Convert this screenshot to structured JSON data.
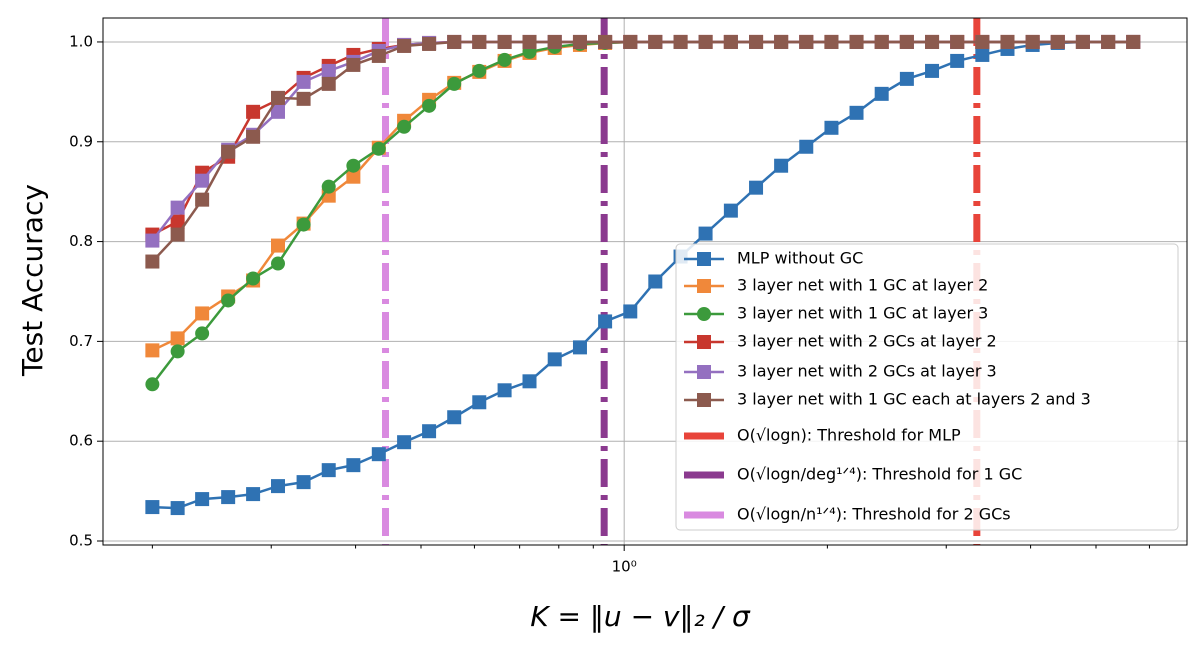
{
  "chart_data": {
    "type": "line",
    "ylabel": "Test Accuracy",
    "xlabel": "K = ‖u − v‖₂ / σ",
    "log_x": true,
    "grid": true,
    "legend_position": "lower right",
    "xlim": [
      0.169,
      6.82
    ],
    "ylim": [
      0.496,
      1.024
    ],
    "xticks": [
      {
        "value": 1,
        "label": "10⁰"
      }
    ],
    "xminorticks": [
      0.2,
      0.3,
      0.4,
      0.5,
      0.6,
      0.7,
      0.8,
      0.9,
      2,
      3,
      4,
      5,
      6
    ],
    "yticks": [
      0.5,
      0.6,
      0.7,
      0.8,
      0.9,
      {
        "value": 1,
        "label": "1.0"
      }
    ],
    "x": [
      0.2,
      0.218,
      0.237,
      0.259,
      0.282,
      0.307,
      0.335,
      0.365,
      0.397,
      0.433,
      0.472,
      0.514,
      0.56,
      0.61,
      0.665,
      0.724,
      0.789,
      0.86,
      0.937,
      1.021,
      1.112,
      1.212,
      1.32,
      1.439,
      1.568,
      1.708,
      1.861,
      2.028,
      2.209,
      2.407,
      2.623,
      2.858,
      3.114,
      3.393,
      3.697,
      4.028,
      4.389,
      4.782,
      5.211,
      5.677
    ],
    "series": [
      {
        "name": "MLP without GC",
        "color": "#2f72b3",
        "marker": "square",
        "values": [
          0.534,
          0.533,
          0.542,
          0.544,
          0.547,
          0.555,
          0.559,
          0.571,
          0.576,
          0.587,
          0.599,
          0.61,
          0.624,
          0.639,
          0.651,
          0.66,
          0.682,
          0.694,
          0.72,
          0.73,
          0.76,
          0.785,
          0.808,
          0.831,
          0.854,
          0.876,
          0.895,
          0.914,
          0.929,
          0.948,
          0.963,
          0.971,
          0.981,
          0.987,
          0.993,
          0.997,
          0.999,
          1.0,
          1.0,
          1.0
        ]
      },
      {
        "name": "3 layer net with 1 GC at layer 2",
        "color": "#f0883a",
        "marker": "square",
        "values": [
          0.691,
          0.703,
          0.728,
          0.745,
          0.761,
          0.796,
          0.818,
          0.846,
          0.865,
          0.894,
          0.921,
          0.942,
          0.959,
          0.97,
          0.981,
          0.989,
          0.994,
          0.997,
          0.999,
          1.0,
          1.0,
          1.0,
          1.0,
          1.0,
          1.0,
          1.0,
          1.0,
          1.0,
          1.0,
          1.0,
          1.0,
          1.0,
          1.0,
          1.0,
          1.0,
          1.0,
          1.0,
          1.0,
          1.0,
          1.0
        ]
      },
      {
        "name": "3 layer net with 1 GC at layer 3",
        "color": "#3c9a3c",
        "marker": "circle",
        "values": [
          0.657,
          0.69,
          0.708,
          0.741,
          0.763,
          0.778,
          0.817,
          0.855,
          0.876,
          0.893,
          0.915,
          0.936,
          0.958,
          0.971,
          0.982,
          0.99,
          0.995,
          0.998,
          0.999,
          1.0,
          1.0,
          1.0,
          1.0,
          1.0,
          1.0,
          1.0,
          1.0,
          1.0,
          1.0,
          1.0,
          1.0,
          1.0,
          1.0,
          1.0,
          1.0,
          1.0,
          1.0,
          1.0,
          1.0,
          1.0
        ]
      },
      {
        "name": "3 layer net with 2 GCs at layer 2",
        "color": "#c8372e",
        "marker": "square",
        "values": [
          0.807,
          0.82,
          0.869,
          0.885,
          0.93,
          0.942,
          0.964,
          0.976,
          0.987,
          0.993,
          0.997,
          0.999,
          1.0,
          1.0,
          1.0,
          1.0,
          1.0,
          1.0,
          1.0,
          1.0,
          1.0,
          1.0,
          1.0,
          1.0,
          1.0,
          1.0,
          1.0,
          1.0,
          1.0,
          1.0,
          1.0,
          1.0,
          1.0,
          1.0,
          1.0,
          1.0,
          1.0,
          1.0,
          1.0,
          1.0
        ]
      },
      {
        "name": "3 layer net with 2 GCs at layer 3",
        "color": "#9470c0",
        "marker": "square",
        "values": [
          0.801,
          0.834,
          0.861,
          0.892,
          0.907,
          0.93,
          0.96,
          0.971,
          0.98,
          0.991,
          0.997,
          0.999,
          1.0,
          1.0,
          1.0,
          1.0,
          1.0,
          1.0,
          1.0,
          1.0,
          1.0,
          1.0,
          1.0,
          1.0,
          1.0,
          1.0,
          1.0,
          1.0,
          1.0,
          1.0,
          1.0,
          1.0,
          1.0,
          1.0,
          1.0,
          1.0,
          1.0,
          1.0,
          1.0,
          1.0
        ]
      },
      {
        "name": "3 layer net with 1 GC each at layers 2 and 3",
        "color": "#8c5a4e",
        "marker": "square",
        "values": [
          0.78,
          0.807,
          0.842,
          0.89,
          0.905,
          0.944,
          0.943,
          0.958,
          0.977,
          0.986,
          0.996,
          0.998,
          1.0,
          1.0,
          1.0,
          1.0,
          1.0,
          1.0,
          1.0,
          1.0,
          1.0,
          1.0,
          1.0,
          1.0,
          1.0,
          1.0,
          1.0,
          1.0,
          1.0,
          1.0,
          1.0,
          1.0,
          1.0,
          1.0,
          1.0,
          1.0,
          1.0,
          1.0,
          1.0,
          1.0
        ]
      }
    ],
    "thresholds": [
      {
        "name": "O(√logn): Threshold for MLP",
        "color": "#e8443a",
        "x": 3.33
      },
      {
        "name": "O(√logn/deg¹ᐟ⁴): Threshold for 1 GC",
        "color": "#8b3a8f",
        "x": 0.934
      },
      {
        "name": "O(√logn/n¹ᐟ⁴): Threshold for 2 GCs",
        "color": "#d98ae0",
        "x": 0.443
      }
    ]
  }
}
